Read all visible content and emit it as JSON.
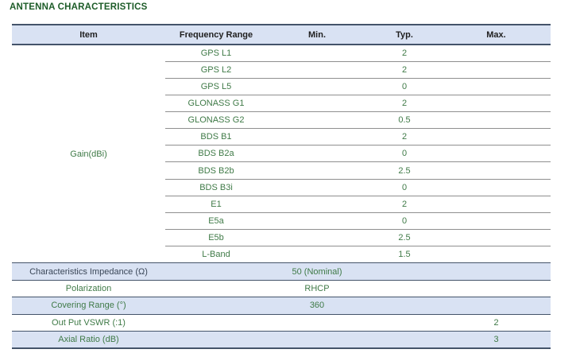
{
  "title": "ANTENNA CHARACTERISTICS",
  "table": {
    "columns": [
      "Item",
      "Frequency Range",
      "Min.",
      "Typ.",
      "Max."
    ],
    "gain": {
      "item": "Gain(dBi)",
      "rows": [
        {
          "freq": "GPS L1",
          "min": "",
          "typ": "2",
          "max": ""
        },
        {
          "freq": "GPS L2",
          "min": "",
          "typ": "2",
          "max": ""
        },
        {
          "freq": "GPS L5",
          "min": "",
          "typ": "0",
          "max": ""
        },
        {
          "freq": "GLONASS G1",
          "min": "",
          "typ": "2",
          "max": ""
        },
        {
          "freq": "GLONASS G2",
          "min": "",
          "typ": "0.5",
          "max": ""
        },
        {
          "freq": "BDS B1",
          "min": "",
          "typ": "2",
          "max": ""
        },
        {
          "freq": "BDS B2a",
          "min": "",
          "typ": "0",
          "max": ""
        },
        {
          "freq": "BDS B2b",
          "min": "",
          "typ": "2.5",
          "max": ""
        },
        {
          "freq": "BDS B3i",
          "min": "",
          "typ": "0",
          "max": ""
        },
        {
          "freq": "E1",
          "min": "",
          "typ": "2",
          "max": ""
        },
        {
          "freq": "E5a",
          "min": "",
          "typ": "0",
          "max": ""
        },
        {
          "freq": "E5b",
          "min": "",
          "typ": "2.5",
          "max": ""
        },
        {
          "freq": "L-Band",
          "min": "",
          "typ": "1.5",
          "max": ""
        }
      ]
    },
    "specs": [
      {
        "label": "Characteristics Impedance (Ω)",
        "value": "50 (Nominal)",
        "value_col": "min",
        "shaded": true,
        "dark_label": true
      },
      {
        "label": "Polarization",
        "value": "RHCP",
        "value_col": "min",
        "shaded": false,
        "dark_label": false
      },
      {
        "label": "Covering Range (°)",
        "value": "360",
        "value_col": "min",
        "shaded": true,
        "dark_label": false
      },
      {
        "label": "Out Put VSWR (:1)",
        "value": "2",
        "value_col": "max",
        "shaded": false,
        "dark_label": false
      },
      {
        "label": "Axial Ratio (dB)",
        "value": "3",
        "value_col": "max",
        "shaded": true,
        "dark_label": false
      }
    ]
  },
  "colors": {
    "title_green": "#1d5c28",
    "text_green": "#3f7a47",
    "text_dark": "#3a4657",
    "header_text": "#1f1f1f",
    "blue_row_bg": "#d9e2f3",
    "dark_border": "#44546a",
    "gray_divider": "#8f8f8f"
  }
}
